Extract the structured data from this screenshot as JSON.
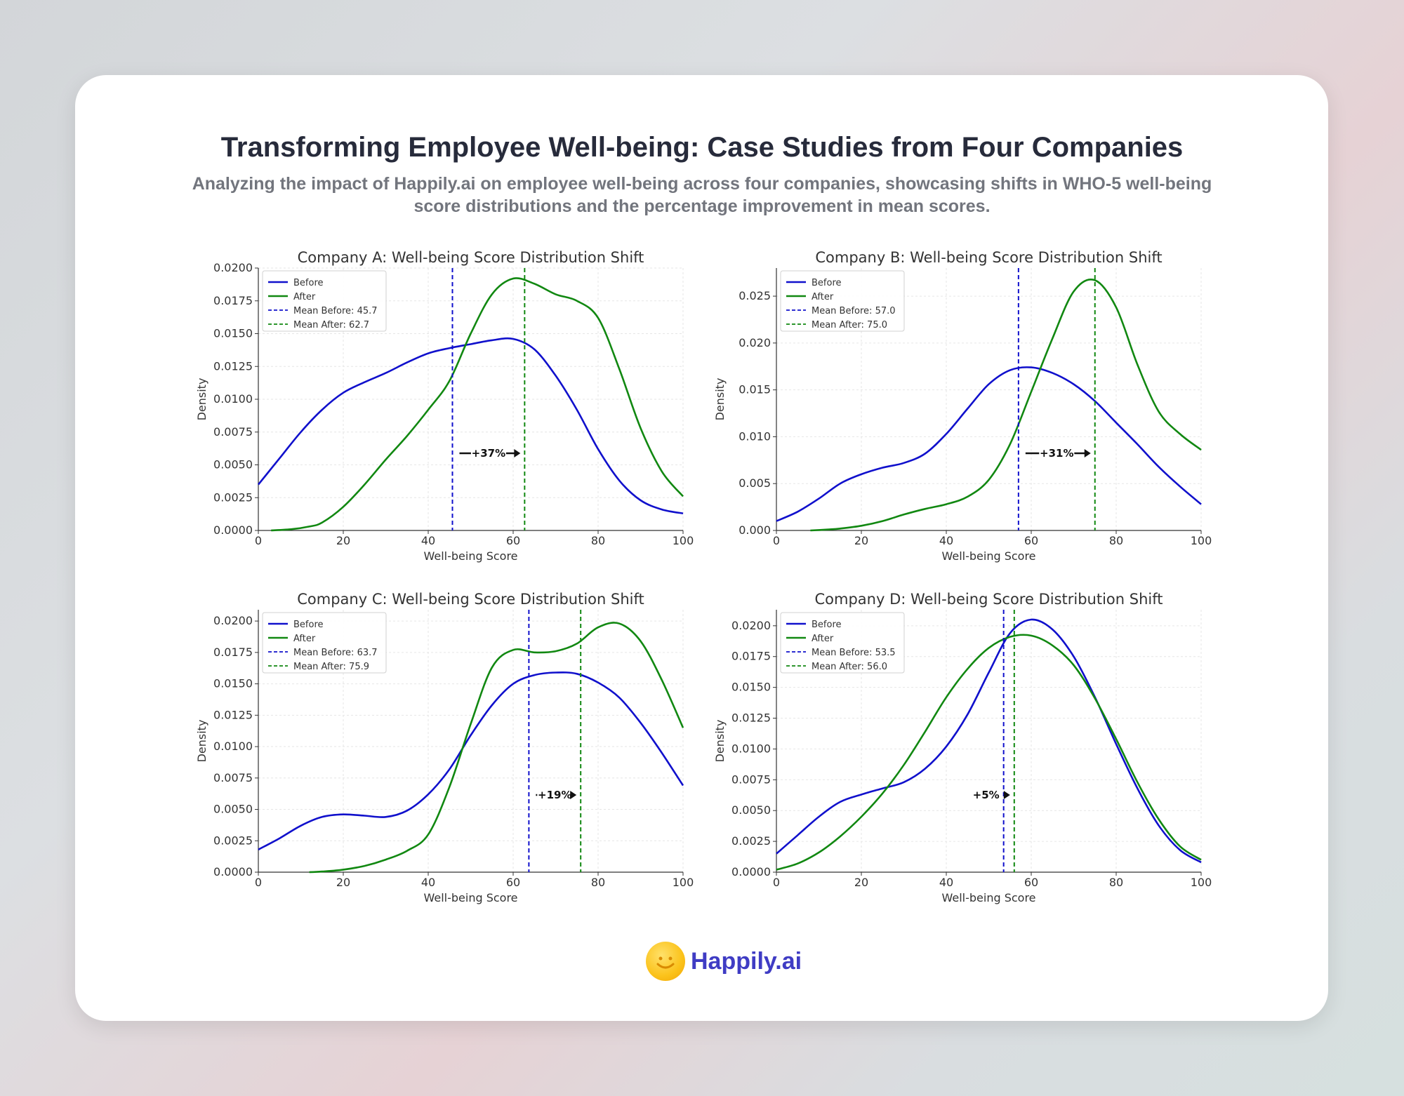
{
  "header": {
    "title": "Transforming Employee Well-being: Case Studies from Four Companies",
    "subtitle": "Analyzing the impact of Happily.ai on employee well-being across four companies, showcasing shifts in WHO-5 well-being score distributions and the percentage improvement in mean scores."
  },
  "brand": {
    "name": "Happily.ai",
    "icon": "smiley-face-icon"
  },
  "colors": {
    "before": "#1010cc",
    "after": "#118811",
    "mean_before": "#1010cc",
    "mean_after": "#118811"
  },
  "chart_data": [
    {
      "type": "line",
      "title": "Company A: Well-being Score Distribution Shift",
      "xlabel": "Well-being Score",
      "ylabel": "Density",
      "xlim": [
        0,
        100
      ],
      "ylim": [
        0,
        0.02
      ],
      "xticks": [
        "0",
        "20",
        "40",
        "60",
        "80",
        "100"
      ],
      "yticks": [
        "0.0000",
        "0.0025",
        "0.0050",
        "0.0075",
        "0.0100",
        "0.0125",
        "0.0150",
        "0.0175",
        "0.0200"
      ],
      "yvals": [
        0,
        0.0025,
        0.005,
        0.0075,
        0.01,
        0.0125,
        0.015,
        0.0175,
        0.02
      ],
      "legend_position": "top-left",
      "legend": [
        "Before",
        "After",
        "Mean Before: 45.7",
        "Mean After: 62.7"
      ],
      "series": [
        {
          "name": "Before",
          "x": [
            0,
            5,
            10,
            15,
            20,
            25,
            30,
            35,
            40,
            45,
            50,
            55,
            60,
            65,
            70,
            75,
            80,
            85,
            90,
            95,
            100
          ],
          "y": [
            0.0035,
            0.0055,
            0.0075,
            0.0092,
            0.0105,
            0.0113,
            0.012,
            0.0128,
            0.0135,
            0.0139,
            0.0142,
            0.0145,
            0.0146,
            0.0138,
            0.0118,
            0.0092,
            0.0062,
            0.0038,
            0.0023,
            0.0016,
            0.0013
          ]
        },
        {
          "name": "After",
          "x": [
            3,
            8,
            12,
            15,
            20,
            25,
            30,
            35,
            40,
            45,
            50,
            55,
            60,
            65,
            70,
            75,
            80,
            85,
            90,
            95,
            100
          ],
          "y": [
            0,
            0.0001,
            0.0003,
            0.0006,
            0.0018,
            0.0035,
            0.0054,
            0.0072,
            0.0092,
            0.0114,
            0.015,
            0.018,
            0.0192,
            0.0188,
            0.018,
            0.0175,
            0.0162,
            0.0123,
            0.0078,
            0.0045,
            0.0026
          ]
        }
      ],
      "mean_before": 45.7,
      "mean_after": 62.7,
      "improvement": "+37%"
    },
    {
      "type": "line",
      "title": "Company B: Well-being Score Distribution Shift",
      "xlabel": "Well-being Score",
      "ylabel": "Density",
      "xlim": [
        0,
        100
      ],
      "ylim": [
        0,
        0.028
      ],
      "xticks": [
        "0",
        "20",
        "40",
        "60",
        "80",
        "100"
      ],
      "yticks": [
        "0.000",
        "0.005",
        "0.010",
        "0.015",
        "0.020",
        "0.025"
      ],
      "yvals": [
        0,
        0.005,
        0.01,
        0.015,
        0.02,
        0.025
      ],
      "legend_position": "top-left",
      "legend": [
        "Before",
        "After",
        "Mean Before: 57.0",
        "Mean After: 75.0"
      ],
      "series": [
        {
          "name": "Before",
          "x": [
            0,
            5,
            10,
            15,
            20,
            25,
            30,
            35,
            40,
            45,
            50,
            55,
            60,
            65,
            70,
            75,
            80,
            85,
            90,
            95,
            100
          ],
          "y": [
            0.001,
            0.002,
            0.0034,
            0.005,
            0.006,
            0.0067,
            0.0072,
            0.0082,
            0.0103,
            0.013,
            0.0156,
            0.0171,
            0.0174,
            0.0168,
            0.0156,
            0.0138,
            0.0115,
            0.0092,
            0.0068,
            0.0047,
            0.0028
          ]
        },
        {
          "name": "After",
          "x": [
            8,
            12,
            15,
            20,
            25,
            30,
            35,
            40,
            45,
            50,
            55,
            60,
            65,
            70,
            75,
            80,
            85,
            90,
            95,
            100
          ],
          "y": [
            0,
            0.0001,
            0.0002,
            0.0005,
            0.001,
            0.0017,
            0.0023,
            0.0028,
            0.0036,
            0.0054,
            0.0092,
            0.0148,
            0.0205,
            0.0255,
            0.0267,
            0.0238,
            0.0177,
            0.0127,
            0.0103,
            0.0086
          ]
        }
      ],
      "mean_before": 57.0,
      "mean_after": 75.0,
      "improvement": "+31%"
    },
    {
      "type": "line",
      "title": "Company C: Well-being Score Distribution Shift",
      "xlabel": "Well-being Score",
      "ylabel": "Density",
      "xlim": [
        0,
        100
      ],
      "ylim": [
        0,
        0.0209
      ],
      "xticks": [
        "0",
        "20",
        "40",
        "60",
        "80",
        "100"
      ],
      "yticks": [
        "0.0000",
        "0.0025",
        "0.0050",
        "0.0075",
        "0.0100",
        "0.0125",
        "0.0150",
        "0.0175",
        "0.0200"
      ],
      "yvals": [
        0,
        0.0025,
        0.005,
        0.0075,
        0.01,
        0.0125,
        0.015,
        0.0175,
        0.02
      ],
      "legend_position": "top-left",
      "legend": [
        "Before",
        "After",
        "Mean Before: 63.7",
        "Mean After: 75.9"
      ],
      "series": [
        {
          "name": "Before",
          "x": [
            0,
            5,
            10,
            15,
            20,
            25,
            30,
            35,
            40,
            45,
            50,
            55,
            60,
            65,
            70,
            75,
            80,
            85,
            90,
            95,
            100
          ],
          "y": [
            0.0018,
            0.0027,
            0.0037,
            0.0044,
            0.0046,
            0.0045,
            0.0044,
            0.0049,
            0.0062,
            0.0082,
            0.0109,
            0.0133,
            0.015,
            0.0157,
            0.0159,
            0.0158,
            0.0151,
            0.0139,
            0.0119,
            0.0095,
            0.0069
          ]
        },
        {
          "name": "After",
          "x": [
            12,
            15,
            20,
            25,
            30,
            35,
            40,
            45,
            50,
            55,
            60,
            65,
            70,
            75,
            80,
            85,
            90,
            95,
            100
          ],
          "y": [
            0,
            5e-05,
            0.0002,
            0.0005,
            0.001,
            0.0017,
            0.003,
            0.0068,
            0.0118,
            0.0163,
            0.0177,
            0.0175,
            0.0176,
            0.0182,
            0.0195,
            0.0198,
            0.0184,
            0.0153,
            0.0115
          ]
        }
      ],
      "mean_before": 63.7,
      "mean_after": 75.9,
      "improvement": "+19%"
    },
    {
      "type": "line",
      "title": "Company D: Well-being Score Distribution Shift",
      "xlabel": "Well-being Score",
      "ylabel": "Density",
      "xlim": [
        0,
        100
      ],
      "ylim": [
        0,
        0.0213
      ],
      "xticks": [
        "0",
        "20",
        "40",
        "60",
        "80",
        "100"
      ],
      "yticks": [
        "0.0000",
        "0.0025",
        "0.0050",
        "0.0075",
        "0.0100",
        "0.0125",
        "0.0150",
        "0.0175",
        "0.0200"
      ],
      "yvals": [
        0,
        0.0025,
        0.005,
        0.0075,
        0.01,
        0.0125,
        0.015,
        0.0175,
        0.02
      ],
      "legend_position": "top-left",
      "legend": [
        "Before",
        "After",
        "Mean Before: 53.5",
        "Mean After: 56.0"
      ],
      "series": [
        {
          "name": "Before",
          "x": [
            0,
            5,
            10,
            15,
            20,
            25,
            30,
            35,
            40,
            45,
            50,
            55,
            60,
            65,
            70,
            75,
            80,
            85,
            90,
            95,
            100
          ],
          "y": [
            0.0015,
            0.003,
            0.0045,
            0.0057,
            0.0063,
            0.0068,
            0.0073,
            0.0084,
            0.0102,
            0.0128,
            0.0162,
            0.0194,
            0.0205,
            0.0197,
            0.0175,
            0.0142,
            0.0104,
            0.0068,
            0.0038,
            0.0018,
            0.0008
          ]
        },
        {
          "name": "After",
          "x": [
            0,
            5,
            10,
            15,
            20,
            25,
            30,
            35,
            40,
            45,
            50,
            55,
            60,
            65,
            70,
            75,
            80,
            85,
            90,
            95,
            100
          ],
          "y": [
            0.0002,
            0.0007,
            0.0016,
            0.0029,
            0.0045,
            0.0064,
            0.0087,
            0.0114,
            0.0142,
            0.0165,
            0.0182,
            0.0191,
            0.0192,
            0.0184,
            0.0168,
            0.0141,
            0.0108,
            0.0073,
            0.0043,
            0.0021,
            0.001
          ]
        }
      ],
      "mean_before": 53.5,
      "mean_after": 56.0,
      "improvement": "+5%"
    }
  ]
}
